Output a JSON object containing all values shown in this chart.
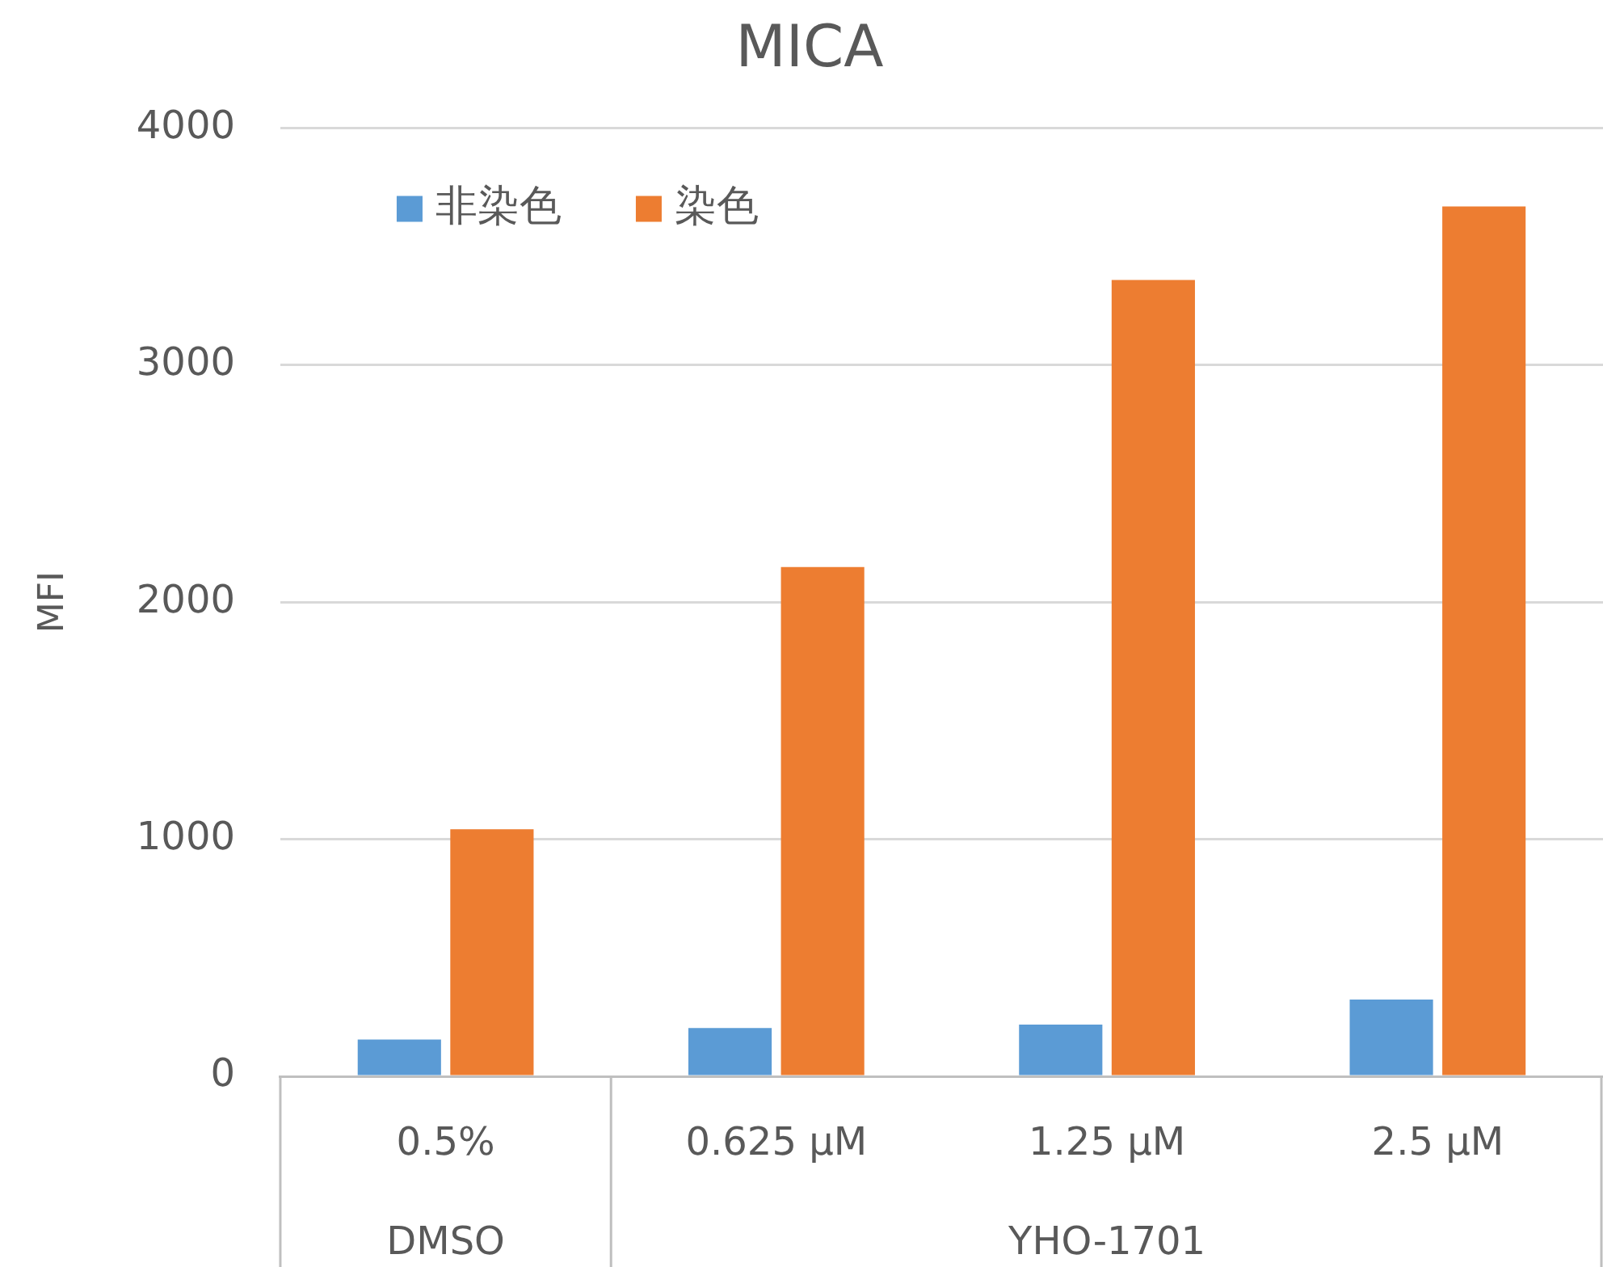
{
  "chart_data": {
    "type": "bar",
    "title": "MICA",
    "ylabel": "MFI",
    "categories": [
      "0.5%",
      "0.625 µM",
      "1.25 µM",
      "2.5 µM"
    ],
    "series": [
      {
        "name": "非染色",
        "color": "#5b9bd5",
        "values": [
          155,
          204,
          218,
          324
        ]
      },
      {
        "name": "染色",
        "color": "#ed7d31",
        "values": [
          1042,
          2148,
          3359,
          3669
        ]
      }
    ],
    "ylim": [
      0,
      4000
    ],
    "yticks": [
      0,
      1000,
      2000,
      3000,
      4000
    ],
    "grid": "y",
    "legend": "top left",
    "annotations": [
      "DMSO",
      "YHO-1701"
    ]
  }
}
